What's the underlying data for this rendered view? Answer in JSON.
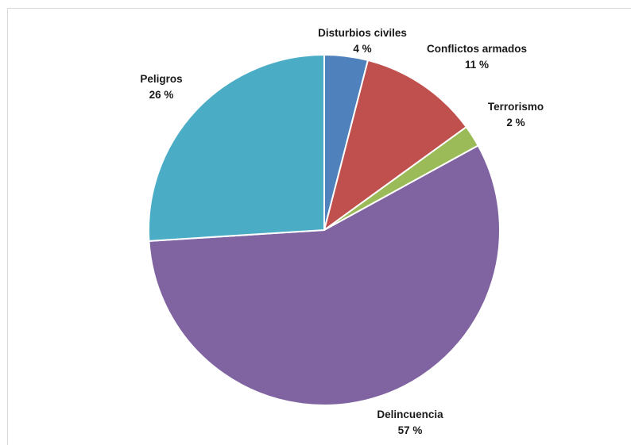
{
  "chart_data": {
    "type": "pie",
    "start_angle_deg": 0,
    "direction": "clockwise",
    "slices": [
      {
        "label": "Disturbios civiles",
        "value": 4,
        "value_label": "4 %",
        "color": "#4F81BD"
      },
      {
        "label": "Conflictos armados",
        "value": 11,
        "value_label": "11 %",
        "color": "#C0504D"
      },
      {
        "label": "Terrorismo",
        "value": 2,
        "value_label": "2 %",
        "color": "#9BBB59"
      },
      {
        "label": "Delincuencia",
        "value": 57,
        "value_label": "57 %",
        "color": "#8064A2"
      },
      {
        "label": "Peligros",
        "value": 26,
        "value_label": "26 %",
        "color": "#4BACC6"
      }
    ],
    "legend": "none",
    "slice_border_color": "#ffffff"
  }
}
